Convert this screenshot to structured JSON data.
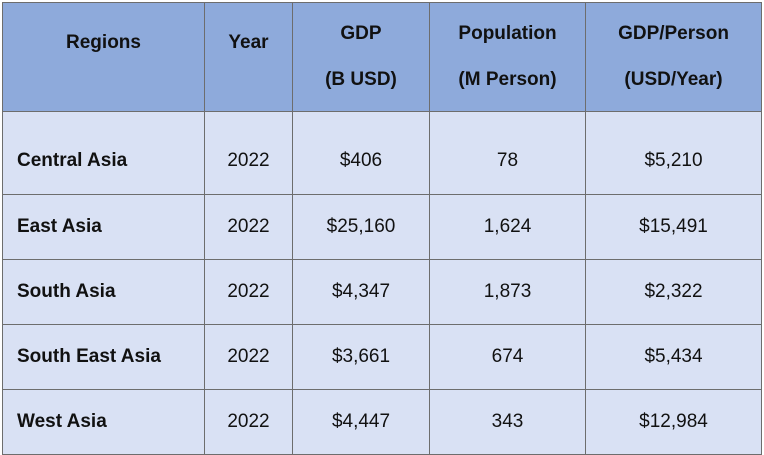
{
  "table": {
    "headers": [
      {
        "line1": "Regions",
        "line2": ""
      },
      {
        "line1": "Year",
        "line2": ""
      },
      {
        "line1": "GDP",
        "line2": "(B USD)"
      },
      {
        "line1": "Population",
        "line2": "(M Person)"
      },
      {
        "line1": "GDP/Person",
        "line2": "(USD/Year)"
      }
    ],
    "rows": [
      {
        "region": "Central Asia",
        "year": "2022",
        "gdp": "$406",
        "population": "78",
        "gdp_per_person": "$5,210"
      },
      {
        "region": "East Asia",
        "year": "2022",
        "gdp": "$25,160",
        "population": "1,624",
        "gdp_per_person": "$15,491"
      },
      {
        "region": "South Asia",
        "year": "2022",
        "gdp": "$4,347",
        "population": "1,873",
        "gdp_per_person": "$2,322"
      },
      {
        "region": "South East Asia",
        "year": "2022",
        "gdp": "$3,661",
        "population": "674",
        "gdp_per_person": "$5,434"
      },
      {
        "region": "West Asia",
        "year": "2022",
        "gdp": "$4,447",
        "population": "343",
        "gdp_per_person": "$12,984"
      }
    ]
  },
  "colors": {
    "header_bg": "#8eaadb",
    "body_bg": "#d9e1f4",
    "border": "#6d6d6d"
  }
}
